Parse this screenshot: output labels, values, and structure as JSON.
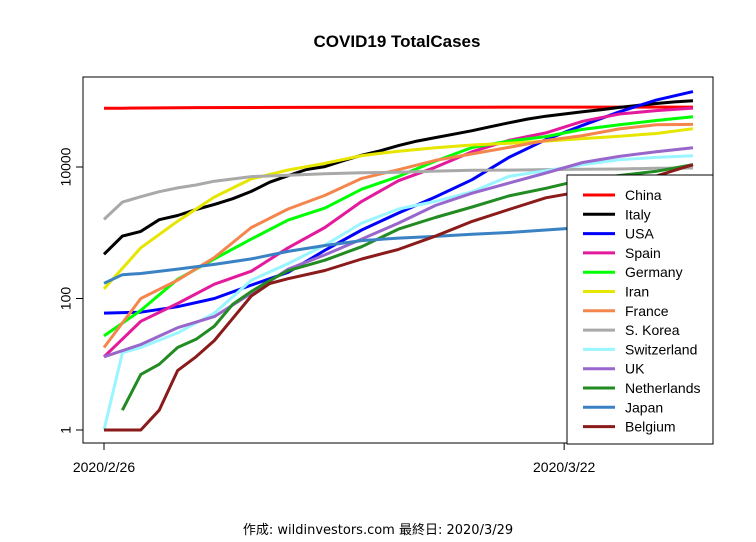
{
  "caption": "作成: wildinvestors.com 最終日: 2020/3/29",
  "chart_data": {
    "type": "line",
    "title": "COVID19 TotalCases",
    "xlabel": "",
    "ylabel": "",
    "y_scale": "log",
    "ylim": [
      0.7,
      150000
    ],
    "x_ticks": [
      {
        "day": 0,
        "label": "2020/2/26"
      },
      {
        "day": 25,
        "label": "2020/3/22"
      }
    ],
    "y_ticks": [
      {
        "value": 1,
        "label": "1"
      },
      {
        "value": 100,
        "label": "100"
      },
      {
        "value": 10000,
        "label": "10000"
      }
    ],
    "x_start_date": "2020-02-26",
    "x_end_day": 32,
    "grid": false,
    "legend_position": "bottom-right",
    "series": [
      {
        "name": "China",
        "color": "#ff0000",
        "x": [
          0,
          1,
          5,
          10,
          15,
          20,
          25,
          32
        ],
        "values": [
          78000,
          78500,
          80000,
          80750,
          81000,
          81100,
          81400,
          81470
        ]
      },
      {
        "name": "Italy",
        "color": "#000000",
        "x": [
          0,
          1,
          2,
          3,
          4,
          5,
          6,
          7,
          8,
          9,
          10,
          11,
          12,
          13,
          14,
          15,
          16,
          17,
          18,
          19,
          20,
          21,
          22,
          23,
          24,
          25,
          26,
          27,
          28,
          29,
          30,
          31,
          32
        ],
        "values": [
          470,
          890,
          1050,
          1580,
          1830,
          2260,
          2700,
          3290,
          4250,
          5880,
          7380,
          9170,
          10150,
          12460,
          15110,
          17660,
          21160,
          24750,
          27980,
          31510,
          35710,
          41040,
          47020,
          53580,
          59140,
          63930,
          69180,
          74390,
          80590,
          86500,
          92470,
          97690,
          101700
        ]
      },
      {
        "name": "USA",
        "color": "#0000ff",
        "x": [
          0,
          2,
          4,
          6,
          8,
          10,
          12,
          14,
          16,
          18,
          20,
          22,
          24,
          26,
          28,
          30,
          32
        ],
        "values": [
          60,
          62,
          75,
          100,
          160,
          250,
          540,
          1100,
          2000,
          3500,
          6400,
          14000,
          26000,
          43000,
          69000,
          104000,
          140000
        ]
      },
      {
        "name": "Spain",
        "color": "#e31a9c",
        "x": [
          0,
          2,
          4,
          6,
          8,
          10,
          12,
          14,
          16,
          18,
          20,
          22,
          24,
          26,
          28,
          30,
          32
        ],
        "values": [
          13,
          45,
          84,
          165,
          260,
          590,
          1200,
          3000,
          6200,
          9900,
          17100,
          25400,
          33000,
          49500,
          64000,
          72000,
          78800
        ]
      },
      {
        "name": "Germany",
        "color": "#00ff00",
        "x": [
          0,
          2,
          4,
          6,
          8,
          10,
          12,
          14,
          16,
          18,
          20,
          22,
          24,
          26,
          28,
          30,
          32
        ],
        "values": [
          27,
          66,
          196,
          400,
          800,
          1560,
          2370,
          4600,
          7200,
          12300,
          19800,
          24800,
          29000,
          37300,
          43900,
          50900,
          58200
        ]
      },
      {
        "name": "Iran",
        "color": "#e6e600",
        "x": [
          0,
          2,
          4,
          6,
          8,
          10,
          12,
          14,
          16,
          18,
          20,
          22,
          24,
          26,
          28,
          30,
          32
        ],
        "values": [
          140,
          590,
          1500,
          3500,
          6600,
          9000,
          11400,
          14900,
          17400,
          19600,
          21600,
          23000,
          24800,
          27000,
          29400,
          32300,
          38300
        ]
      },
      {
        "name": "France",
        "color": "#f4864d",
        "x": [
          0,
          2,
          4,
          6,
          8,
          10,
          12,
          14,
          16,
          18,
          20,
          22,
          24,
          26,
          28,
          30,
          32
        ],
        "values": [
          18,
          100,
          190,
          420,
          1200,
          2300,
          3700,
          6700,
          9100,
          12600,
          15800,
          19900,
          25300,
          30000,
          38000,
          43800,
          44500
        ]
      },
      {
        "name": "S. Korea",
        "color": "#a9a9a9",
        "x": [
          0,
          1,
          2,
          3,
          4,
          5,
          6,
          8,
          10,
          12,
          14,
          16,
          18,
          20,
          22,
          24,
          26,
          28,
          30,
          32
        ],
        "values": [
          1595,
          2930,
          3530,
          4210,
          4810,
          5330,
          6080,
          7140,
          7480,
          7870,
          8160,
          8320,
          8650,
          8900,
          8960,
          9140,
          9240,
          9330,
          9560,
          9640
        ]
      },
      {
        "name": "Switzerland",
        "color": "#99f5ff",
        "x": [
          0,
          1,
          2,
          4,
          6,
          8,
          10,
          12,
          14,
          16,
          18,
          20,
          22,
          24,
          26,
          28,
          30,
          32
        ],
        "values": [
          1,
          15,
          18,
          30,
          60,
          190,
          340,
          650,
          1400,
          2300,
          3000,
          4200,
          7200,
          8800,
          10800,
          12900,
          14000,
          14800
        ]
      },
      {
        "name": "UK",
        "color": "#9966cc",
        "x": [
          0,
          2,
          4,
          6,
          8,
          10,
          12,
          14,
          16,
          18,
          20,
          22,
          24,
          26,
          28,
          30,
          32
        ],
        "values": [
          13,
          20,
          36,
          53,
          120,
          280,
          460,
          800,
          1400,
          2600,
          4000,
          5700,
          8100,
          11700,
          14500,
          17100,
          19600
        ]
      },
      {
        "name": "Netherlands",
        "color": "#228b22",
        "x": [
          1,
          2,
          3,
          4,
          5,
          6,
          7,
          8,
          9,
          10,
          12,
          14,
          16,
          18,
          20,
          22,
          24,
          26,
          28,
          30,
          32
        ],
        "values": [
          2,
          7,
          10,
          18,
          24,
          38,
          82,
          128,
          188,
          265,
          382,
          614,
          1135,
          1705,
          2460,
          3631,
          4749,
          6412,
          7431,
          8603,
          10866
        ]
      },
      {
        "name": "Japan",
        "color": "#3b82c4",
        "x": [
          0,
          1,
          2,
          4,
          6,
          8,
          10,
          12,
          14,
          16,
          18,
          20,
          22,
          24,
          26,
          28,
          30,
          32
        ],
        "values": [
          170,
          230,
          240,
          280,
          330,
          400,
          520,
          640,
          760,
          830,
          880,
          950,
          1010,
          1100,
          1200,
          1300,
          1700,
          1900
        ]
      },
      {
        "name": "Belgium",
        "color": "#8b1a1a",
        "x": [
          0,
          1,
          2,
          3,
          4,
          5,
          6,
          7,
          8,
          9,
          10,
          12,
          14,
          16,
          18,
          20,
          22,
          24,
          26,
          28,
          30,
          32
        ],
        "values": [
          1,
          1,
          1,
          2,
          8,
          13,
          23,
          50,
          109,
          169,
          200,
          267,
          399,
          559,
          886,
          1486,
          2257,
          3401,
          4269,
          6235,
          7284,
          10836
        ]
      }
    ]
  }
}
